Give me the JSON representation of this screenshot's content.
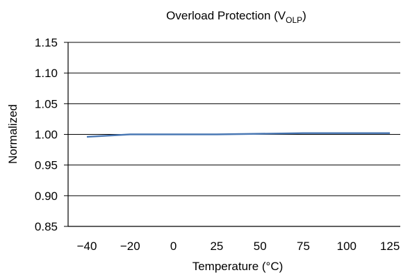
{
  "chart_data": {
    "type": "line",
    "title": {
      "main": "Overload Protection (V",
      "sub": "OLP",
      "close": ")"
    },
    "xlabel": "Temperature (°C)",
    "ylabel": "Normalized",
    "categories": [
      "−40",
      "−20",
      "0",
      "25",
      "50",
      "75",
      "100",
      "125"
    ],
    "y_ticks": [
      "1.15",
      "1.10",
      "1.05",
      "1.00",
      "0.95",
      "0.90",
      "0.85"
    ],
    "ylim": [
      0.85,
      1.15
    ],
    "grid": "horizontal",
    "series": [
      {
        "color": "#4a78b4",
        "values": [
          0.996,
          1.0,
          1.0,
          1.0,
          1.001,
          1.002,
          1.002,
          1.002
        ]
      }
    ]
  }
}
